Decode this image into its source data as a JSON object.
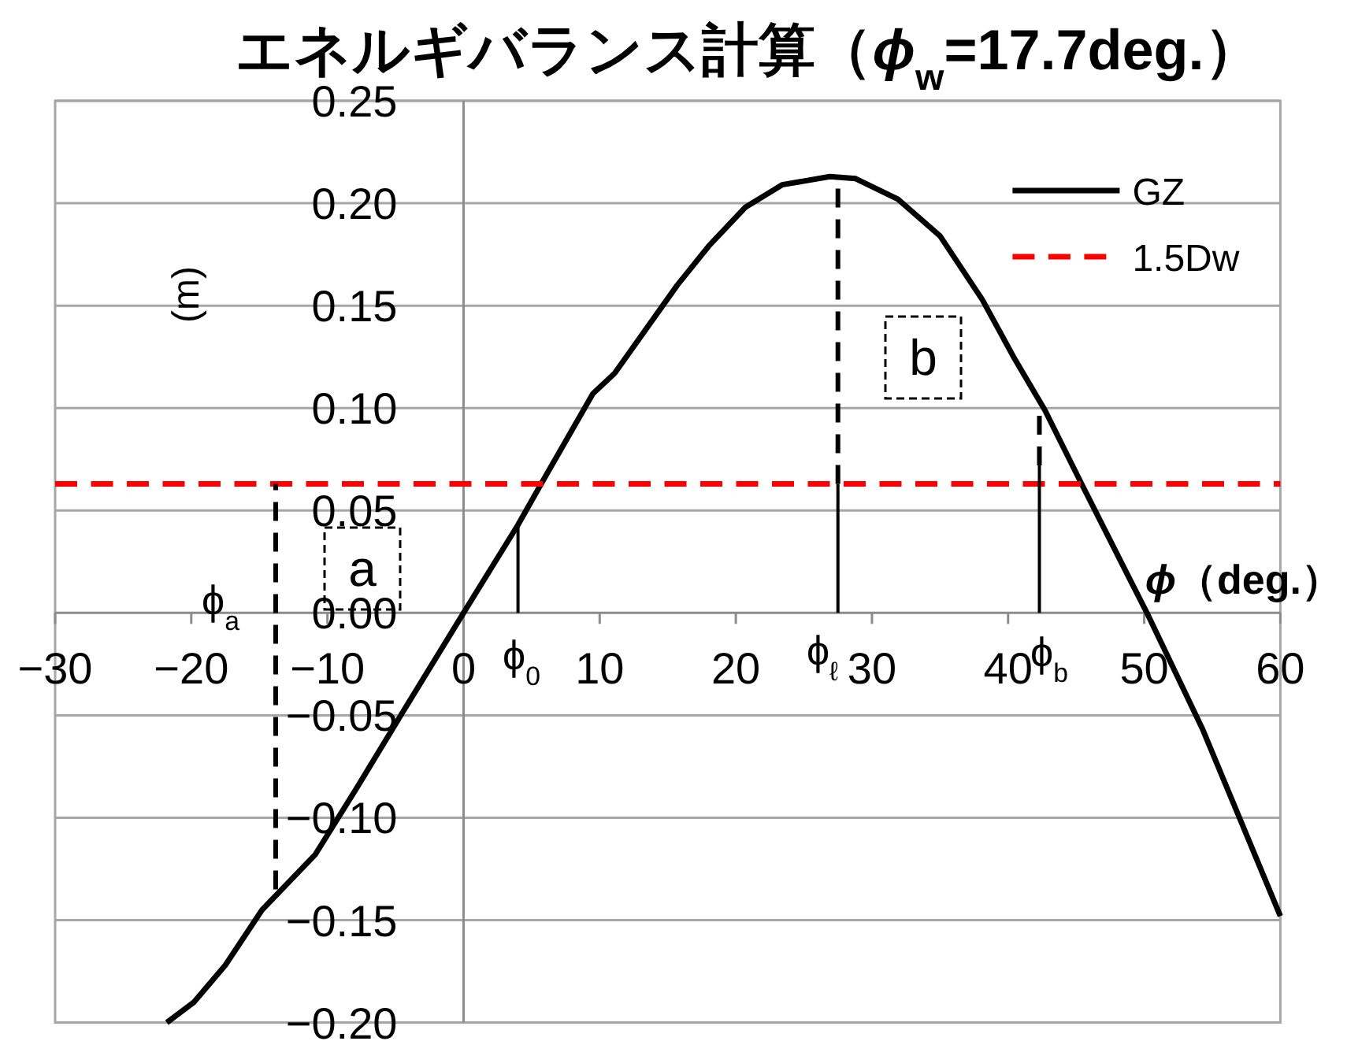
{
  "chart_data": {
    "type": "line",
    "title": "エネルギバランス計算（*ϕ*$_{w}$=17.7deg.）",
    "xlabel": "*ϕ*（deg.）",
    "ylabel": "(m)",
    "xlim": [
      -30,
      60
    ],
    "ylim": [
      -0.2,
      0.25
    ],
    "xticks": [
      {
        "value": -30,
        "label": "−30"
      },
      {
        "value": -20,
        "label": "−20"
      },
      {
        "value": -10,
        "label": "−10"
      },
      0,
      10,
      20,
      30,
      40,
      50,
      60
    ],
    "yticks": [
      {
        "value": -0.2,
        "label": "−0.20"
      },
      {
        "value": -0.15,
        "label": "−0.15"
      },
      {
        "value": -0.1,
        "label": "−0.10"
      },
      {
        "value": -0.05,
        "label": "−0.05"
      },
      {
        "value": 0,
        "label": "0.00"
      },
      0.05,
      {
        "value": 0.1,
        "label": "0.10"
      },
      0.15,
      {
        "value": 0.2,
        "label": "0.20"
      },
      0.25
    ],
    "grid": "y",
    "legend": "top right",
    "series": [
      {
        "name": "GZ",
        "color": "#000000",
        "line_style": "solid",
        "x": [
          -21.8,
          -19.8,
          -17.5,
          -14.8,
          -10.9,
          -7.8,
          -4.7,
          0,
          4.0,
          5.7,
          9.5,
          11.1,
          15.7,
          18.0,
          20.7,
          23.4,
          26.9,
          28.8,
          31.9,
          35.0,
          38.1,
          40.4,
          42.7,
          45.4,
          48.9,
          50.2,
          54.3,
          60
        ],
        "values": [
          -0.2,
          -0.19,
          -0.172,
          -0.145,
          -0.118,
          -0.085,
          -0.051,
          0,
          0.043,
          0.063,
          0.107,
          0.117,
          0.16,
          0.179,
          0.198,
          0.209,
          0.213,
          0.212,
          0.202,
          0.184,
          0.153,
          0.125,
          0.099,
          0.063,
          0.017,
          0,
          -0.057,
          -0.148
        ]
      },
      {
        "name": "1.5Dw",
        "color": "#ff0000",
        "line_style": "dashed",
        "x": [
          -30,
          60
        ],
        "values": [
          0.063,
          0.063
        ]
      },
      {
        "color": "#000000",
        "line_style": "dashed",
        "x": [
          -13.8,
          -13.8
        ],
        "values": [
          -0.135,
          0.063
        ]
      },
      {
        "color": "#000000",
        "line_style": "solid",
        "x": [
          4.0,
          4.0
        ],
        "values": [
          0,
          0.043
        ]
      },
      {
        "color": "#000000",
        "line_style": "solid",
        "x": [
          27.5,
          27.5
        ],
        "values": [
          0,
          0.063
        ]
      },
      {
        "color": "#000000",
        "line_style": "dashed",
        "x": [
          27.5,
          27.5
        ],
        "values": [
          0.063,
          0.212
        ]
      },
      {
        "color": "#000000",
        "line_style": "solid",
        "x": [
          42.3,
          42.3
        ],
        "values": [
          0,
          0.072
        ]
      },
      {
        "color": "#000000",
        "line_style": "dashed",
        "x": [
          42.3,
          42.3
        ],
        "values": [
          0.072,
          0.097
        ]
      }
    ],
    "annotations": [
      "a",
      "b",
      "ϕ$_{a}$",
      "ϕ$_{0}$",
      "ϕ$_{ℓ}$",
      "ϕ$_{b}$"
    ]
  }
}
